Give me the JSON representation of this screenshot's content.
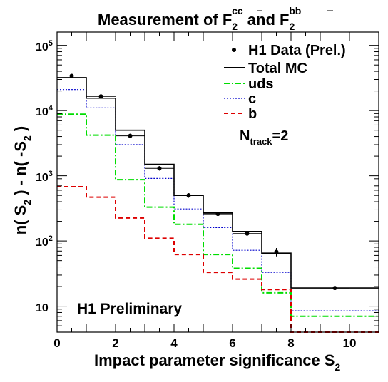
{
  "chart_data": {
    "type": "histogram",
    "title": {
      "prefix": "Measurement of F",
      "sub1": "2",
      "sup1": "c",
      "sup1b": "c",
      "mid": " and F",
      "sub2": "2",
      "sup2": "b",
      "sup2b": "b"
    },
    "xlabel": {
      "text": "Impact parameter significance S",
      "sub": "2"
    },
    "ylabel": {
      "p1": "n( S",
      "s1": "2",
      "p2": " ) - n( -S",
      "s2": "2",
      "p3": " )"
    },
    "xlim": [
      0,
      11
    ],
    "ylim": [
      4,
      160000
    ],
    "yscale": "log",
    "xticks": [
      "0",
      "2",
      "4",
      "6",
      "8",
      "10"
    ],
    "yticks": [
      {
        "base": "10",
        "exp": ""
      },
      {
        "base": "10",
        "exp": "2"
      },
      {
        "base": "10",
        "exp": "3"
      },
      {
        "base": "10",
        "exp": "4"
      },
      {
        "base": "10",
        "exp": "5"
      }
    ],
    "bin_edges": [
      0,
      1,
      2,
      3,
      4,
      5,
      6,
      7,
      8,
      11
    ],
    "series": [
      {
        "name": "Total MC",
        "color": "#000000",
        "style": "solid",
        "values": [
          32000,
          15500,
          5000,
          1500,
          500,
          270,
          140,
          65,
          19
        ]
      },
      {
        "name": "uds",
        "color": "#00dd00",
        "style": "dashdot",
        "values": [
          8800,
          4200,
          870,
          330,
          180,
          62,
          38,
          16,
          7
        ]
      },
      {
        "name": "c",
        "color": "#0000cc",
        "style": "dotted",
        "values": [
          21000,
          11000,
          3000,
          910,
          310,
          160,
          72,
          33,
          8.5
        ]
      },
      {
        "name": "b",
        "color": "#dd0000",
        "style": "dashed",
        "values": [
          680,
          470,
          225,
          110,
          62,
          33,
          26,
          18,
          4
        ]
      }
    ],
    "data_points": {
      "name": "H1 Data (Prel.)",
      "x": [
        0.5,
        1.5,
        2.5,
        3.5,
        4.5,
        5.5,
        6.5,
        7.5,
        9.5
      ],
      "y": [
        34000,
        16500,
        4100,
        1300,
        500,
        260,
        130,
        68,
        19
      ],
      "yerr": [
        1800,
        1000,
        300,
        100,
        40,
        25,
        15,
        10,
        3
      ],
      "xerr": 0.5
    },
    "legend": {
      "position": "top-right",
      "entries": [
        "H1 Data (Prel.)",
        "Total MC",
        "uds",
        "c",
        "b"
      ]
    },
    "annotations": {
      "ntrack": {
        "base": "N",
        "sub": "track",
        "rest": "=2"
      },
      "preliminary": "H1 Preliminary"
    }
  }
}
